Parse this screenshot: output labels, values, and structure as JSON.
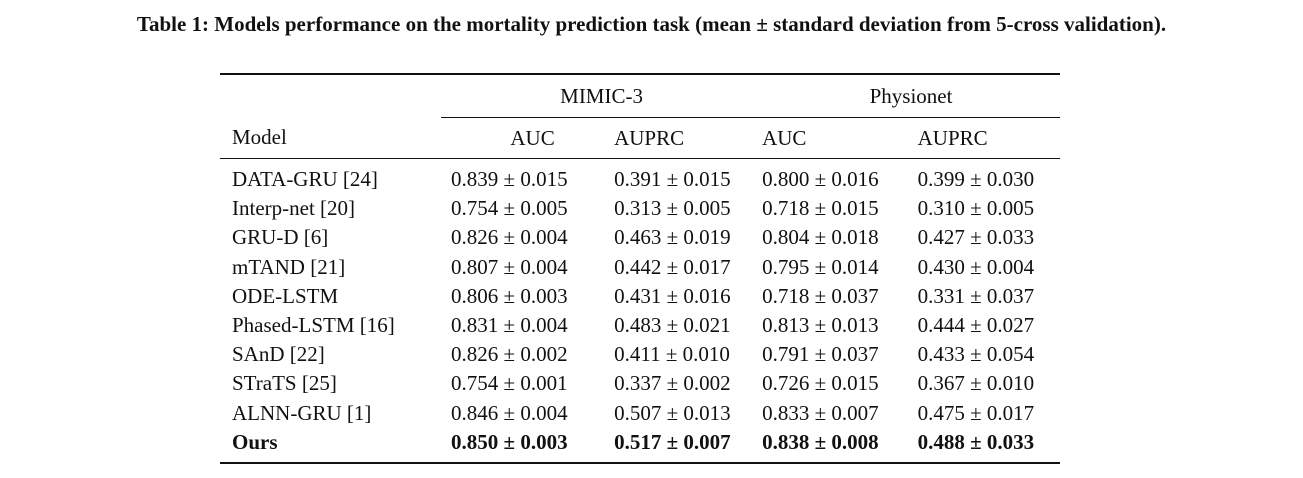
{
  "caption": "Table 1: Models performance on the mortality prediction task (mean ± standard deviation from 5-cross validation).",
  "table": {
    "group_headers": [
      "MIMIC-3",
      "Physionet"
    ],
    "column_headers": [
      "Model",
      "AUC",
      "AUPRC",
      "AUC",
      "AUPRC"
    ],
    "rows": [
      {
        "model": "DATA-GRU [24]",
        "values": [
          "0.839 ± 0.015",
          "0.391 ± 0.015",
          "0.800 ± 0.016",
          "0.399 ± 0.030"
        ]
      },
      {
        "model": "Interp-net [20]",
        "values": [
          "0.754 ± 0.005",
          "0.313 ± 0.005",
          "0.718 ± 0.015",
          "0.310 ± 0.005"
        ]
      },
      {
        "model": "GRU-D [6]",
        "values": [
          "0.826 ± 0.004",
          "0.463 ± 0.019",
          "0.804 ± 0.018",
          "0.427 ± 0.033"
        ]
      },
      {
        "model": "mTAND [21]",
        "values": [
          "0.807 ± 0.004",
          "0.442 ± 0.017",
          "0.795 ± 0.014",
          "0.430 ± 0.004"
        ]
      },
      {
        "model": "ODE-LSTM",
        "values": [
          "0.806 ± 0.003",
          "0.431 ± 0.016",
          "0.718 ± 0.037",
          "0.331 ± 0.037"
        ]
      },
      {
        "model": "Phased-LSTM [16]",
        "values": [
          "0.831 ± 0.004",
          "0.483 ± 0.021",
          "0.813 ± 0.013",
          "0.444 ± 0.027"
        ]
      },
      {
        "model": "SAnD [22]",
        "values": [
          "0.826 ± 0.002",
          "0.411 ± 0.010",
          "0.791 ± 0.037",
          "0.433 ± 0.054"
        ]
      },
      {
        "model": "STraTS [25]",
        "values": [
          "0.754 ± 0.001",
          "0.337 ± 0.002",
          "0.726 ± 0.015",
          "0.367 ± 0.010"
        ]
      },
      {
        "model": "ALNN-GRU [1]",
        "values": [
          "0.846 ± 0.004",
          "0.507 ± 0.013",
          "0.833 ± 0.007",
          "0.475 ± 0.017"
        ]
      },
      {
        "model": "Ours",
        "values": [
          "0.850 ± 0.003",
          "0.517 ± 0.007",
          "0.838 ± 0.008",
          "0.488 ± 0.033"
        ],
        "bold": true
      }
    ]
  }
}
